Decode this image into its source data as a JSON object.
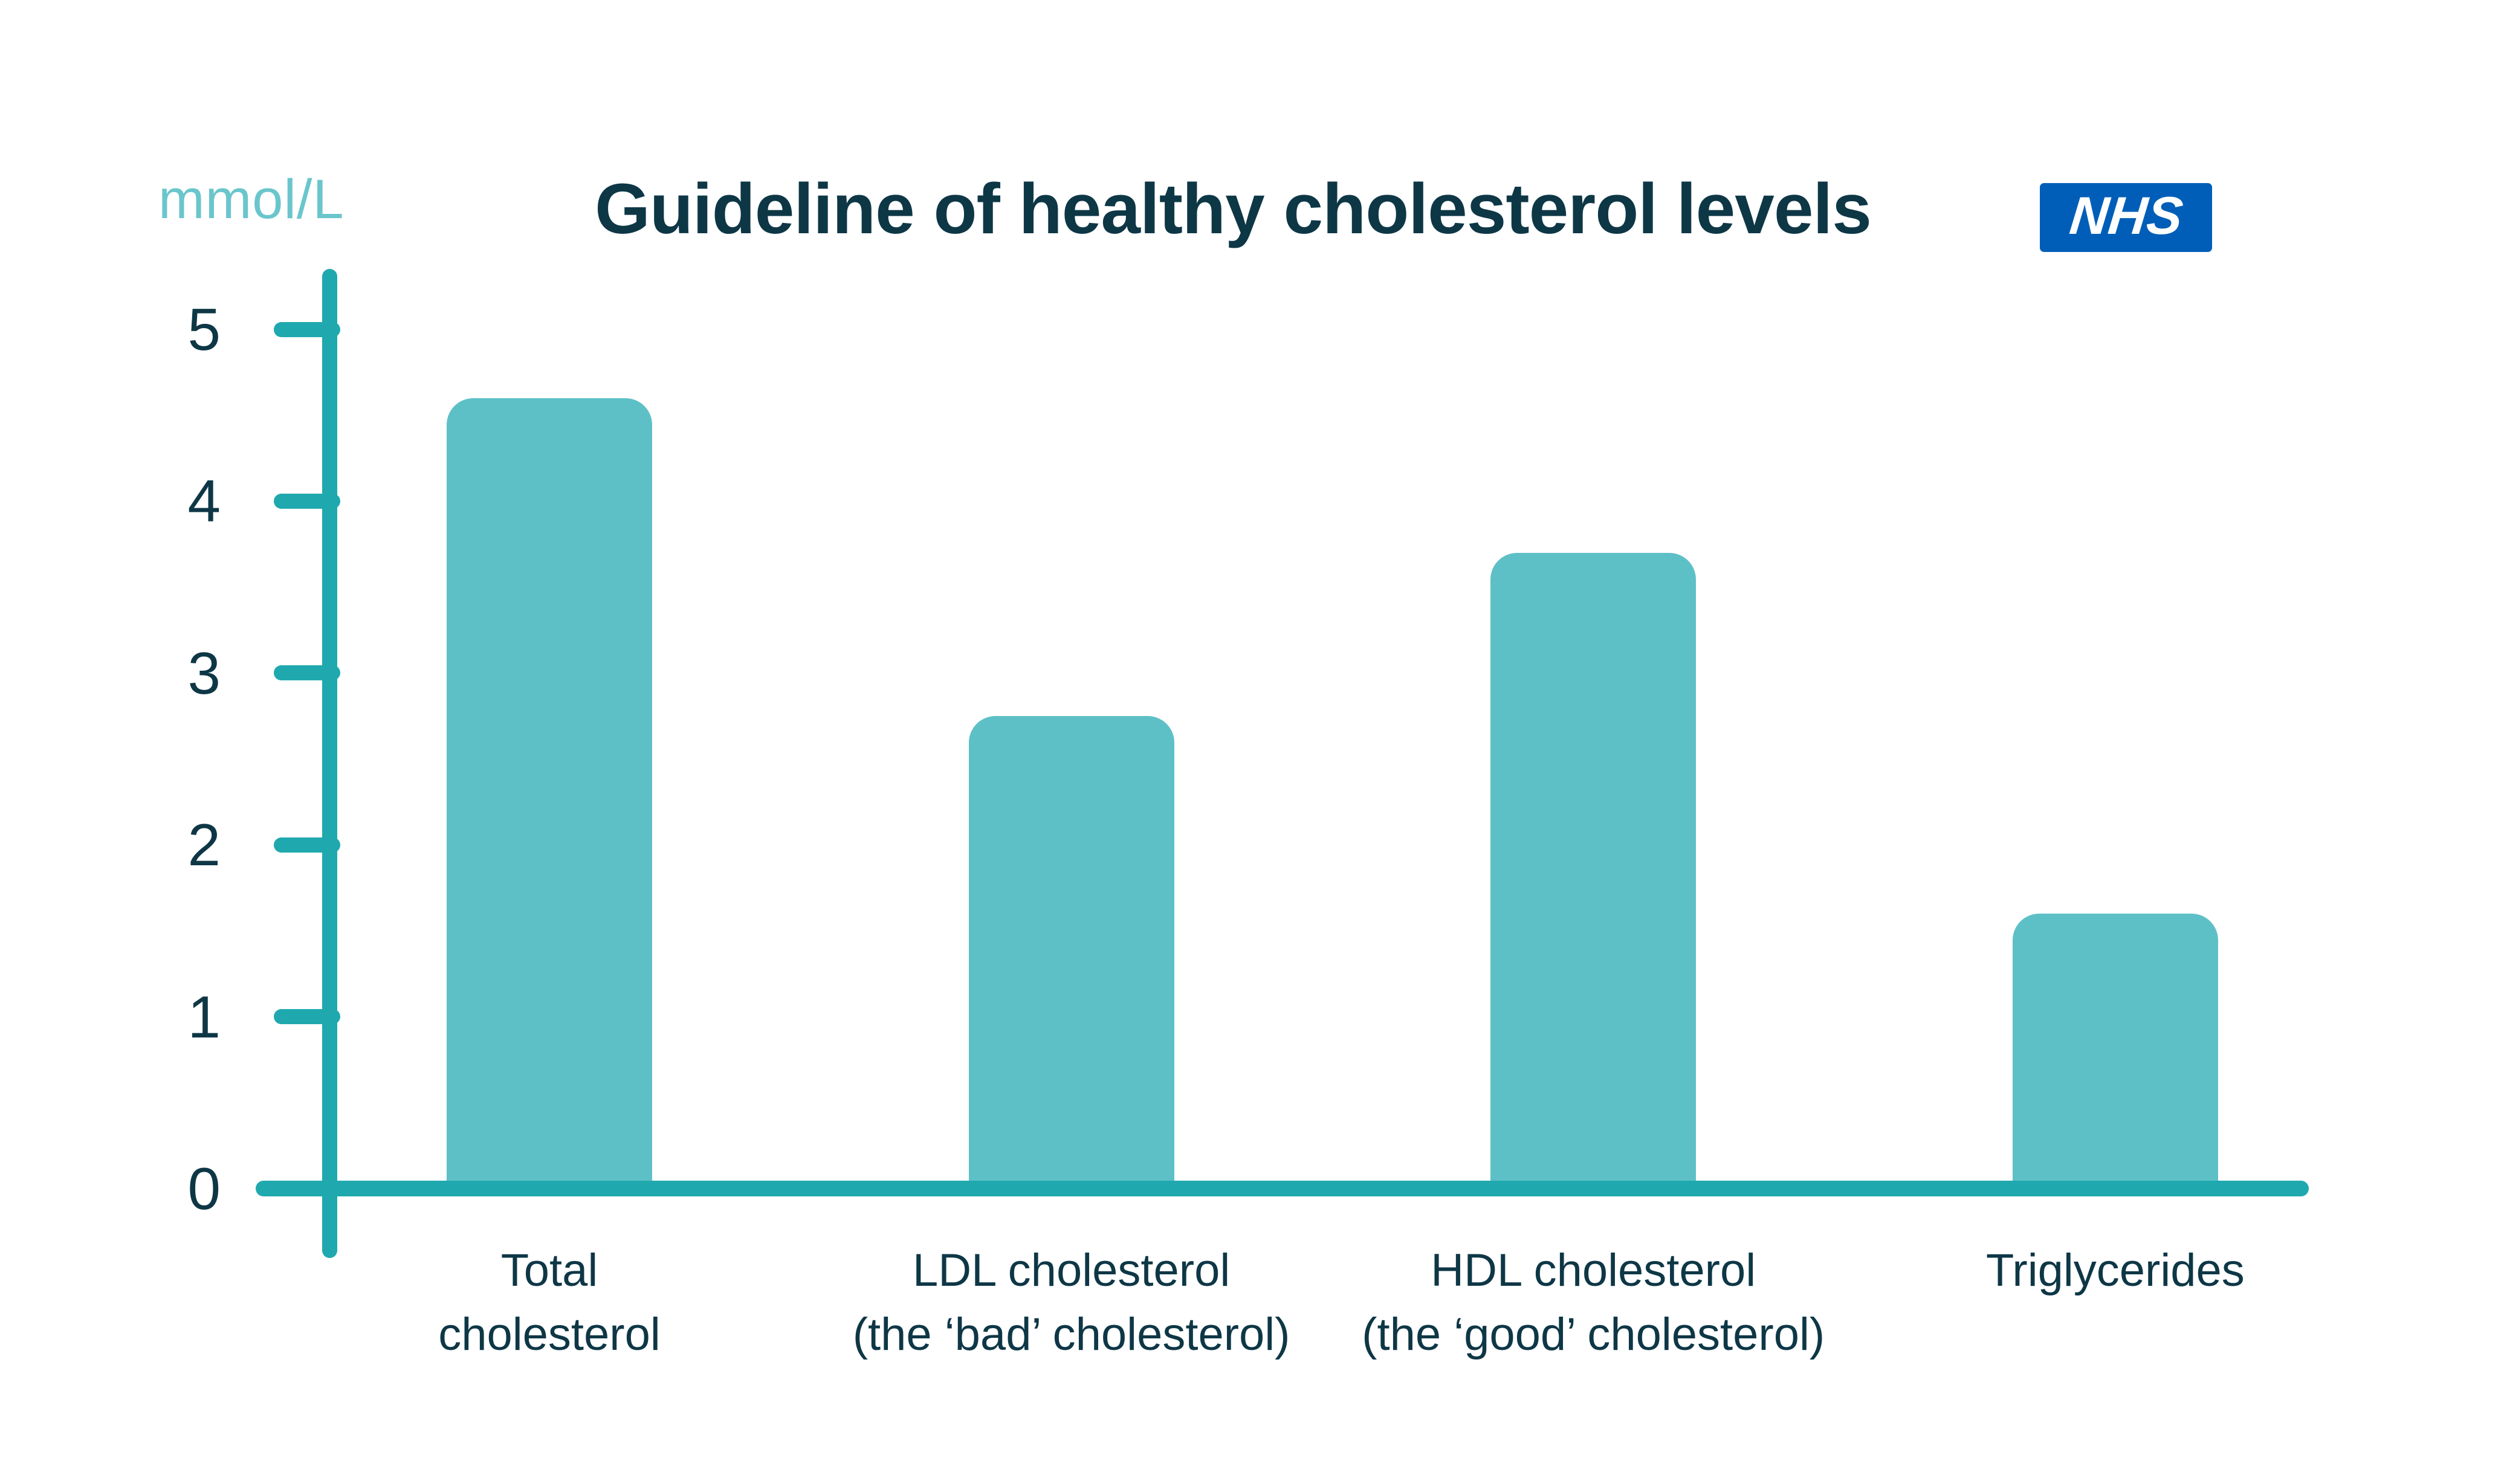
{
  "header": {
    "title": "Guideline of healthy cholesterol levels",
    "unit_label": "mmol/L",
    "nhs_logo_text": "NHS"
  },
  "chart_data": {
    "type": "bar",
    "title": "Guideline of healthy cholesterol levels",
    "unit": "mmol/L",
    "categories": [
      "Total cholesterol",
      "LDL cholesterol (the ‘bad’ cholesterol)",
      "HDL cholesterol (the ‘good’ cholesterol)",
      "Triglycerides"
    ],
    "category_lines": [
      [
        "Total",
        "cholesterol"
      ],
      [
        "LDL cholesterol",
        "(the ‘bad’ cholesterol)"
      ],
      [
        "HDL cholesterol",
        "(the ‘good’ cholesterol)"
      ],
      [
        "Triglycerides"
      ]
    ],
    "values": [
      4.6,
      2.75,
      3.7,
      1.6
    ],
    "y_ticks": [
      0,
      1,
      2,
      3,
      4,
      5
    ],
    "ylim": [
      0,
      5.3
    ],
    "xlabel": "",
    "ylabel": "mmol/L",
    "grid": false,
    "legend_position": "none",
    "colors": {
      "bar_fill": "#5ec0c7",
      "axis": "#1fa9ae",
      "unit_text": "#6ac6cc",
      "dark_text": "#0e3746",
      "nhs_blue": "#005eb8",
      "nhs_text": "#ffffff",
      "background": "#ffffff"
    }
  }
}
